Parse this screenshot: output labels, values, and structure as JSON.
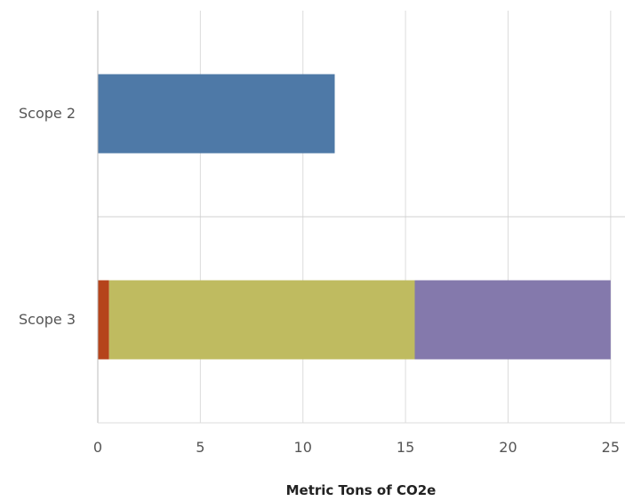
{
  "chart_data": {
    "type": "bar",
    "orientation": "horizontal",
    "stacked": true,
    "title": "",
    "xlabel": "Metric Tons of CO2e",
    "ylabel": "",
    "xlim": [
      0,
      25.7
    ],
    "xticks": [
      0,
      5,
      10,
      15,
      20,
      25
    ],
    "grid": true,
    "legend": "none",
    "categories": [
      "Scope 2",
      "Scope 3"
    ],
    "series": [
      {
        "color": "#4e79a7",
        "values": [
          11.55,
          0
        ]
      },
      {
        "color": "#b5441b",
        "values": [
          0,
          0.55
        ]
      },
      {
        "color": "#bfbb60",
        "values": [
          0,
          14.9
        ]
      },
      {
        "color": "#8479ac",
        "values": [
          0,
          9.55
        ]
      }
    ]
  }
}
